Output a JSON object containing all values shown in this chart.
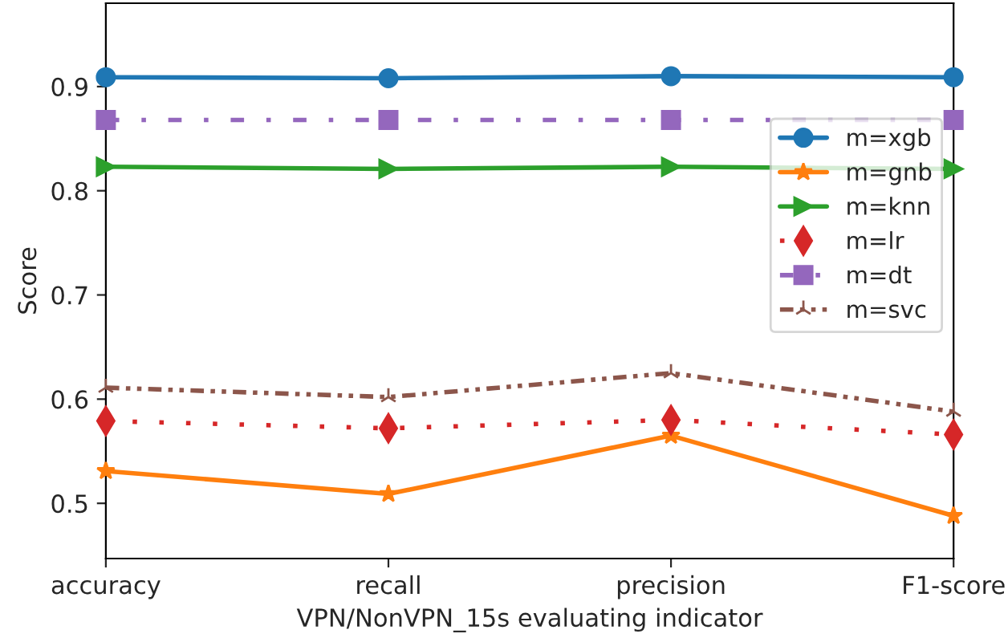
{
  "chart_data": {
    "type": "line",
    "xlabel": "VPN/NonVPN_15s evaluating indicator",
    "ylabel": "Score",
    "categories": [
      "accuracy",
      "recall",
      "precision",
      "F1-score"
    ],
    "ylim": [
      0.447,
      0.98
    ],
    "yticks": [
      0.5,
      0.6,
      0.7,
      0.8,
      0.9
    ],
    "grid": false,
    "legend": "right",
    "series": [
      {
        "name": "m=xgb",
        "color": "#1f77b4",
        "marker": "circle",
        "line_style": "solid",
        "values": [
          0.909,
          0.908,
          0.91,
          0.909
        ]
      },
      {
        "name": "m=gnb",
        "color": "#ff7f0e",
        "marker": "star",
        "line_style": "solid",
        "values": [
          0.531,
          0.509,
          0.565,
          0.488
        ]
      },
      {
        "name": "m=knn",
        "color": "#2ca02c",
        "marker": "triangle_right",
        "line_style": "solid",
        "values": [
          0.823,
          0.821,
          0.823,
          0.821
        ]
      },
      {
        "name": "m=lr",
        "color": "#d62728",
        "marker": "diamond",
        "line_style": "dotted",
        "values": [
          0.579,
          0.572,
          0.58,
          0.566
        ]
      },
      {
        "name": "m=dt",
        "color": "#9467bd",
        "marker": "square",
        "line_style": "dashdot",
        "values": [
          0.868,
          0.868,
          0.868,
          0.868
        ]
      },
      {
        "name": "m=svc",
        "color": "#8c564b",
        "marker": "cross",
        "line_style": "dashdotdot",
        "values": [
          0.611,
          0.602,
          0.625,
          0.588
        ]
      }
    ]
  }
}
